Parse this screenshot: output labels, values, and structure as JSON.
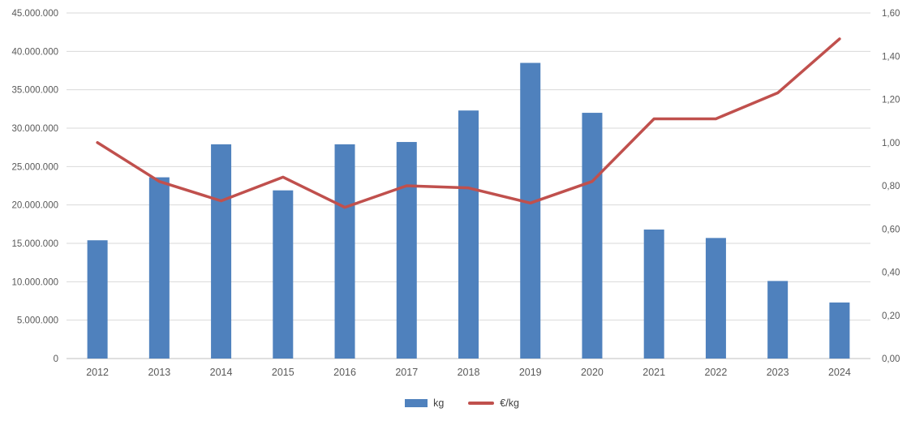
{
  "chart_data": {
    "type": "combo",
    "title": "",
    "xlabel": "",
    "ylabel": "",
    "grid": true,
    "legend_position": "bottom",
    "categories": [
      "2012",
      "2013",
      "2014",
      "2015",
      "2016",
      "2017",
      "2018",
      "2019",
      "2020",
      "2021",
      "2022",
      "2023",
      "2024"
    ],
    "series": [
      {
        "name": "kg",
        "type": "bar",
        "axis": "left",
        "color": "#4f81bd",
        "values": [
          15400000,
          23600000,
          27900000,
          21900000,
          27900000,
          28200000,
          32300000,
          38500000,
          32000000,
          16800000,
          15700000,
          10100000,
          7300000
        ]
      },
      {
        "name": "€/kg",
        "type": "line",
        "axis": "right",
        "color": "#c0504d",
        "values": [
          1.0,
          0.82,
          0.73,
          0.84,
          0.7,
          0.8,
          0.79,
          0.72,
          0.82,
          1.11,
          1.11,
          1.23,
          1.48
        ]
      }
    ],
    "left_axis": {
      "min": 0,
      "max": 45000000,
      "step": 5000000,
      "tick_labels": [
        "45.000.000",
        "40.000.000",
        "35.000.000",
        "30.000.000",
        "25.000.000",
        "20.000.000",
        "15.000.000",
        "10.000.000",
        "5.000.000",
        "0"
      ]
    },
    "right_axis": {
      "min": 0.0,
      "max": 1.6,
      "step": 0.2,
      "tick_labels": [
        "1,60",
        "1,40",
        "1,20",
        "1,00",
        "0,80",
        "0,60",
        "0,40",
        "0,20",
        "0,00"
      ]
    },
    "colors": {
      "gridline": "#d9d9d9",
      "axis_line": "#bfbfbf",
      "tick_text": "#595959",
      "background": "#ffffff"
    }
  }
}
